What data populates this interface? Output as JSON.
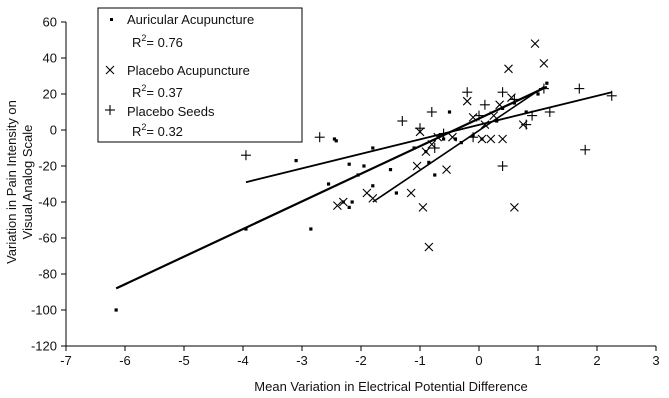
{
  "chart_data": {
    "type": "scatter",
    "title": "",
    "xlabel": "Mean Variation in Electrical Potential Difference",
    "ylabel_lines": [
      "Variation in Pain Intensity on",
      "Visual Analog Scale"
    ],
    "xlim": [
      -7,
      3
    ],
    "ylim": [
      -120,
      60
    ],
    "x_ticks": [
      -7,
      -6,
      -5,
      -4,
      -3,
      -2,
      -1,
      0,
      1,
      2,
      3
    ],
    "y_ticks": [
      -120,
      -100,
      -80,
      -60,
      -40,
      -20,
      0,
      20,
      40,
      60
    ],
    "grid": false,
    "legend_position": "top-left",
    "series": [
      {
        "name": "Auricular Acupuncture",
        "r2_label": "R",
        "r2_value": "= 0.76",
        "marker": "square",
        "points": [
          [
            -6.15,
            -100
          ],
          [
            -3.95,
            -55
          ],
          [
            -3.1,
            -17
          ],
          [
            -2.85,
            -55
          ],
          [
            -2.55,
            -30
          ],
          [
            -2.45,
            -5
          ],
          [
            -2.42,
            -6
          ],
          [
            -2.3,
            -40
          ],
          [
            -2.2,
            -19
          ],
          [
            -2.2,
            -43
          ],
          [
            -2.15,
            -40
          ],
          [
            -2.05,
            -25
          ],
          [
            -1.95,
            -20
          ],
          [
            -1.8,
            -31
          ],
          [
            -1.8,
            -10
          ],
          [
            -1.5,
            -22
          ],
          [
            -1.4,
            -35
          ],
          [
            -1.1,
            -10
          ],
          [
            -0.9,
            -12
          ],
          [
            -0.85,
            -18
          ],
          [
            -0.75,
            -25
          ],
          [
            -0.6,
            -5
          ],
          [
            -0.5,
            10
          ],
          [
            -0.4,
            -5
          ],
          [
            -0.3,
            -7
          ],
          [
            -0.1,
            -3
          ],
          [
            0.05,
            -5
          ],
          [
            0.3,
            5
          ],
          [
            0.4,
            12
          ],
          [
            0.6,
            15
          ],
          [
            0.8,
            10
          ],
          [
            1.0,
            20
          ],
          [
            1.15,
            26
          ]
        ],
        "trendline": [
          [
            -6.15,
            -88
          ],
          [
            1.15,
            24
          ]
        ]
      },
      {
        "name": "Placebo Acupuncture",
        "r2_label": "R",
        "r2_value": "= 0.37",
        "marker": "x",
        "points": [
          [
            -2.4,
            -42
          ],
          [
            -2.3,
            -40
          ],
          [
            -1.9,
            -35
          ],
          [
            -1.8,
            -38
          ],
          [
            -1.15,
            -35
          ],
          [
            -1.05,
            -20
          ],
          [
            -1.0,
            -1
          ],
          [
            -0.95,
            -43
          ],
          [
            -0.9,
            -12
          ],
          [
            -0.85,
            -65
          ],
          [
            -0.8,
            -8
          ],
          [
            -0.7,
            -4
          ],
          [
            -0.55,
            -22
          ],
          [
            -0.45,
            -4
          ],
          [
            -0.2,
            16
          ],
          [
            -0.1,
            7
          ],
          [
            0.05,
            -5
          ],
          [
            0.1,
            3
          ],
          [
            0.2,
            -5
          ],
          [
            0.25,
            8
          ],
          [
            0.35,
            14
          ],
          [
            0.4,
            -5
          ],
          [
            0.5,
            34
          ],
          [
            0.55,
            18
          ],
          [
            0.6,
            -43
          ],
          [
            0.75,
            3
          ],
          [
            0.95,
            48
          ],
          [
            1.1,
            37
          ]
        ],
        "trendline": [
          [
            -1.8,
            -40
          ],
          [
            1.1,
            24
          ]
        ]
      },
      {
        "name": "Placebo Seeds",
        "r2_label": "R",
        "r2_value": "= 0.32",
        "marker": "plus",
        "points": [
          [
            -3.95,
            -14
          ],
          [
            -2.7,
            -4
          ],
          [
            -1.3,
            5
          ],
          [
            -1.0,
            1
          ],
          [
            -0.8,
            10
          ],
          [
            -0.75,
            -10
          ],
          [
            -0.6,
            -2
          ],
          [
            -0.2,
            21
          ],
          [
            -0.1,
            -4
          ],
          [
            0.0,
            8
          ],
          [
            0.1,
            14
          ],
          [
            0.4,
            21
          ],
          [
            0.4,
            -20
          ],
          [
            0.6,
            17
          ],
          [
            0.8,
            3
          ],
          [
            0.9,
            8
          ],
          [
            1.1,
            23
          ],
          [
            1.2,
            10
          ],
          [
            1.7,
            23
          ],
          [
            1.8,
            -11
          ],
          [
            2.25,
            19
          ]
        ],
        "trendline": [
          [
            -3.95,
            -29
          ],
          [
            2.25,
            21
          ]
        ]
      }
    ]
  }
}
